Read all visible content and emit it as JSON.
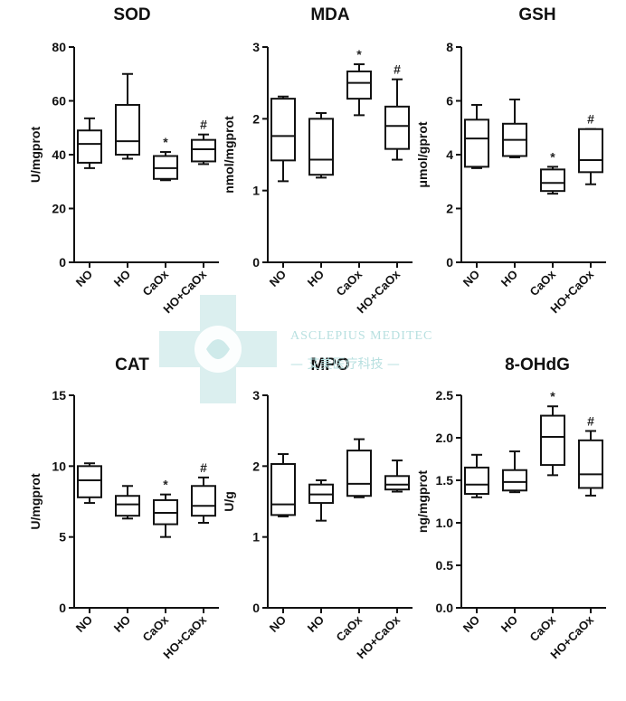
{
  "watermark": {
    "brand": "ASCLEPIUS MEDITEC",
    "brand_cn": "— 艾美医疗科技 —"
  },
  "chart_data": [
    {
      "type": "box",
      "title": "SOD",
      "ylabel": "U/mgprot",
      "ylim": [
        0,
        80
      ],
      "yticks": [
        0,
        20,
        40,
        60,
        80
      ],
      "categories": [
        "NO",
        "HO",
        "CaOx",
        "HO+CaOx"
      ],
      "boxes": [
        {
          "min": 35,
          "q1": 37,
          "median": 44,
          "q3": 49,
          "max": 53.5,
          "mark": ""
        },
        {
          "min": 38.5,
          "q1": 40,
          "median": 45,
          "q3": 58.5,
          "max": 70,
          "mark": ""
        },
        {
          "min": 30.5,
          "q1": 31,
          "median": 35,
          "q3": 39.5,
          "max": 41,
          "mark": "*"
        },
        {
          "min": 36.5,
          "q1": 37.5,
          "median": 42,
          "q3": 45.5,
          "max": 47.5,
          "mark": "#"
        }
      ]
    },
    {
      "type": "box",
      "title": "MDA",
      "ylabel": "nmol/mgprot",
      "ylim": [
        0,
        3
      ],
      "yticks": [
        0,
        1,
        2,
        3
      ],
      "categories": [
        "NO",
        "HO",
        "CaOx",
        "HO+CaOx"
      ],
      "boxes": [
        {
          "min": 1.13,
          "q1": 1.42,
          "median": 1.76,
          "q3": 2.28,
          "max": 2.31,
          "mark": ""
        },
        {
          "min": 1.18,
          "q1": 1.22,
          "median": 1.43,
          "q3": 2.0,
          "max": 2.08,
          "mark": ""
        },
        {
          "min": 2.05,
          "q1": 2.28,
          "median": 2.5,
          "q3": 2.66,
          "max": 2.76,
          "mark": "*"
        },
        {
          "min": 1.43,
          "q1": 1.58,
          "median": 1.9,
          "q3": 2.17,
          "max": 2.55,
          "mark": "#"
        }
      ]
    },
    {
      "type": "box",
      "title": "GSH",
      "ylabel": "μmol/gprot",
      "ylim": [
        0,
        8
      ],
      "yticks": [
        0,
        2,
        4,
        6,
        8
      ],
      "categories": [
        "NO",
        "HO",
        "CaOx",
        "HO+CaOx"
      ],
      "boxes": [
        {
          "min": 3.5,
          "q1": 3.55,
          "median": 4.6,
          "q3": 5.3,
          "max": 5.85,
          "mark": ""
        },
        {
          "min": 3.9,
          "q1": 3.95,
          "median": 4.55,
          "q3": 5.15,
          "max": 6.05,
          "mark": ""
        },
        {
          "min": 2.55,
          "q1": 2.65,
          "median": 2.95,
          "q3": 3.45,
          "max": 3.55,
          "mark": "*"
        },
        {
          "min": 2.9,
          "q1": 3.35,
          "median": 3.8,
          "q3": 4.95,
          "max": 4.95,
          "mark": "#"
        }
      ]
    },
    {
      "type": "box",
      "title": "CAT",
      "ylabel": "U/mgprot",
      "ylim": [
        0,
        15
      ],
      "yticks": [
        0,
        5,
        10,
        15
      ],
      "categories": [
        "NO",
        "HO",
        "CaOx",
        "HO+CaOx"
      ],
      "boxes": [
        {
          "min": 7.4,
          "q1": 7.8,
          "median": 9.0,
          "q3": 10.0,
          "max": 10.2,
          "mark": ""
        },
        {
          "min": 6.3,
          "q1": 6.5,
          "median": 7.3,
          "q3": 7.9,
          "max": 8.6,
          "mark": ""
        },
        {
          "min": 5.0,
          "q1": 5.9,
          "median": 6.7,
          "q3": 7.6,
          "max": 8.0,
          "mark": "*"
        },
        {
          "min": 6.0,
          "q1": 6.5,
          "median": 7.2,
          "q3": 8.6,
          "max": 9.2,
          "mark": "#"
        }
      ]
    },
    {
      "type": "box",
      "title": "MPO",
      "ylabel": "U/g",
      "ylim": [
        0,
        3
      ],
      "yticks": [
        0,
        1,
        2,
        3
      ],
      "categories": [
        "NO",
        "HO",
        "CaOx",
        "HO+CaOx"
      ],
      "boxes": [
        {
          "min": 1.29,
          "q1": 1.31,
          "median": 1.46,
          "q3": 2.03,
          "max": 2.17,
          "mark": ""
        },
        {
          "min": 1.23,
          "q1": 1.48,
          "median": 1.6,
          "q3": 1.74,
          "max": 1.8,
          "mark": ""
        },
        {
          "min": 1.56,
          "q1": 1.58,
          "median": 1.75,
          "q3": 2.22,
          "max": 2.38,
          "mark": ""
        },
        {
          "min": 1.64,
          "q1": 1.67,
          "median": 1.74,
          "q3": 1.86,
          "max": 2.08,
          "mark": ""
        }
      ]
    },
    {
      "type": "box",
      "title": "8-OHdG",
      "ylabel": "ng/mgprot",
      "ylim": [
        0,
        2.5
      ],
      "yticks": [
        "0.0",
        "0.5",
        "1.0",
        "1.5",
        "2.0",
        "2.5"
      ],
      "categories": [
        "NO",
        "HO",
        "CaOx",
        "HO+CaOx"
      ],
      "boxes": [
        {
          "min": 1.3,
          "q1": 1.34,
          "median": 1.45,
          "q3": 1.65,
          "max": 1.8,
          "mark": ""
        },
        {
          "min": 1.36,
          "q1": 1.38,
          "median": 1.48,
          "q3": 1.62,
          "max": 1.84,
          "mark": ""
        },
        {
          "min": 1.56,
          "q1": 1.68,
          "median": 2.01,
          "q3": 2.26,
          "max": 2.37,
          "mark": "*"
        },
        {
          "min": 1.32,
          "q1": 1.41,
          "median": 1.57,
          "q3": 1.97,
          "max": 2.08,
          "mark": "#"
        }
      ]
    }
  ]
}
